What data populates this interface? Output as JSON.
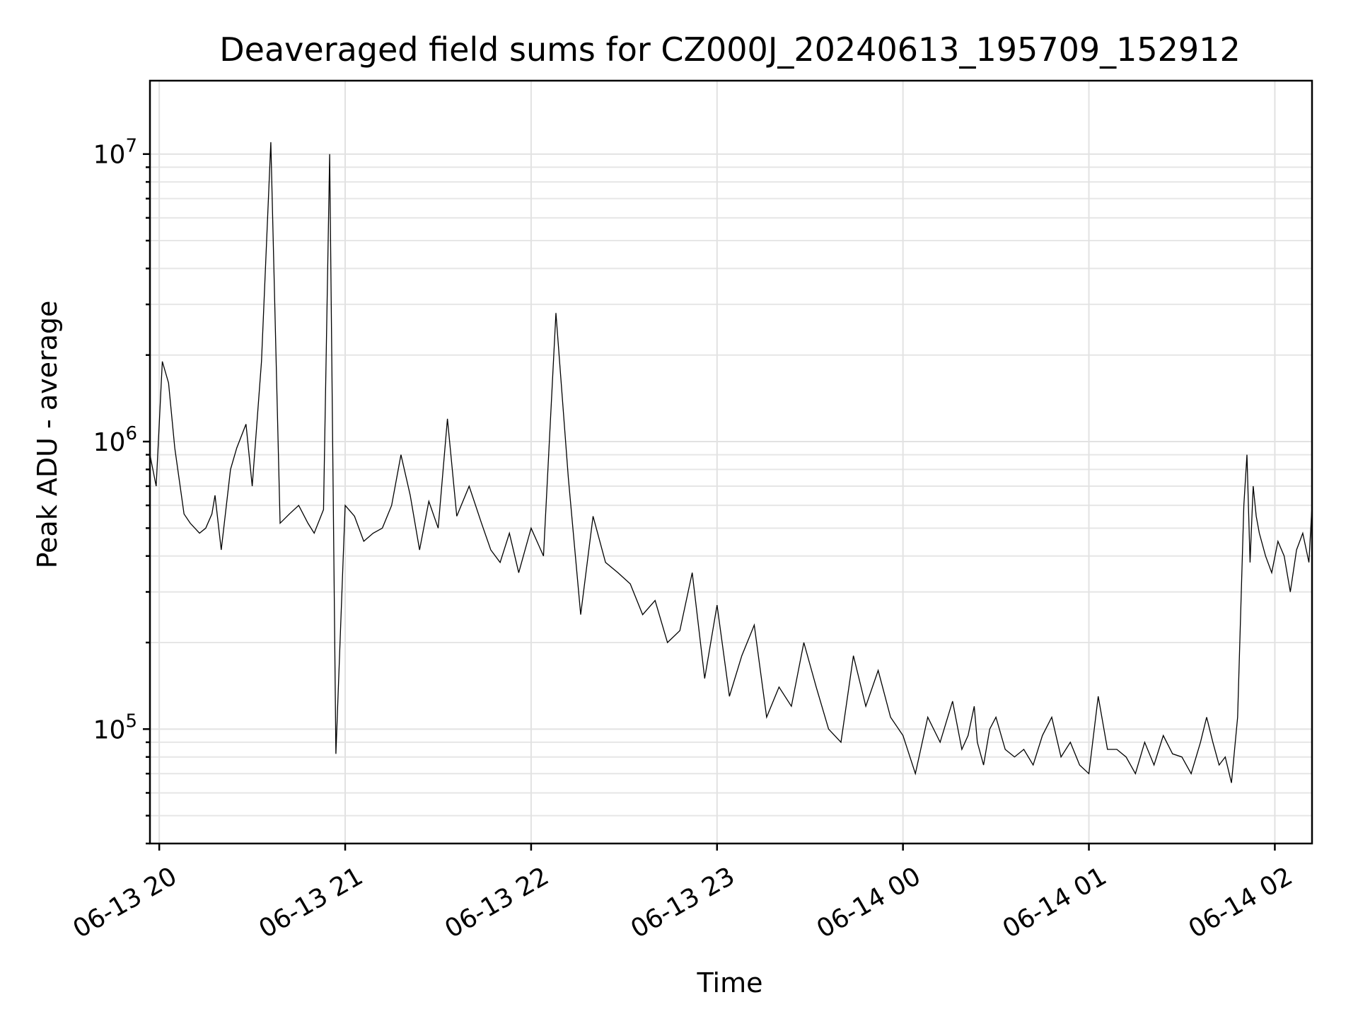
{
  "chart_data": {
    "type": "line",
    "title": "Deaveraged field sums for CZ000J_20240613_195709_152912",
    "xlabel": "Time",
    "ylabel": "Peak ADU - average",
    "yscale": "log",
    "xlim": [
      "2024-06-13 19:57",
      "2024-06-14 02:12"
    ],
    "ylim": [
      40000,
      18000000
    ],
    "x_ticks": [
      "06-13 20",
      "06-13 21",
      "06-13 22",
      "06-13 23",
      "06-14 00",
      "06-14 01",
      "06-14 02"
    ],
    "y_ticks": [
      {
        "base": "10",
        "exp": "5",
        "value": 100000
      },
      {
        "base": "10",
        "exp": "6",
        "value": 1000000
      },
      {
        "base": "10",
        "exp": "7",
        "value": 10000000
      }
    ],
    "grid": true,
    "legend": "none",
    "line_color": "#000000",
    "series": [
      {
        "x": [
          "2024-06-13 19:57",
          "2024-06-13 19:59",
          "2024-06-13 20:01",
          "2024-06-13 20:03",
          "2024-06-13 20:05",
          "2024-06-13 20:08",
          "2024-06-13 20:10",
          "2024-06-13 20:13",
          "2024-06-13 20:15",
          "2024-06-13 20:17",
          "2024-06-13 20:18",
          "2024-06-13 20:20",
          "2024-06-13 20:23",
          "2024-06-13 20:25",
          "2024-06-13 20:28",
          "2024-06-13 20:30",
          "2024-06-13 20:33",
          "2024-06-13 20:36",
          "2024-06-13 20:39",
          "2024-06-13 20:42",
          "2024-06-13 20:45",
          "2024-06-13 20:48",
          "2024-06-13 20:50",
          "2024-06-13 20:53",
          "2024-06-13 20:55",
          "2024-06-13 20:57",
          "2024-06-13 21:00",
          "2024-06-13 21:03",
          "2024-06-13 21:06",
          "2024-06-13 21:09",
          "2024-06-13 21:12",
          "2024-06-13 21:15",
          "2024-06-13 21:18",
          "2024-06-13 21:21",
          "2024-06-13 21:24",
          "2024-06-13 21:27",
          "2024-06-13 21:30",
          "2024-06-13 21:33",
          "2024-06-13 21:36",
          "2024-06-13 21:40",
          "2024-06-13 21:44",
          "2024-06-13 21:47",
          "2024-06-13 21:50",
          "2024-06-13 21:53",
          "2024-06-13 21:56",
          "2024-06-13 22:00",
          "2024-06-13 22:04",
          "2024-06-13 22:08",
          "2024-06-13 22:12",
          "2024-06-13 22:16",
          "2024-06-13 22:20",
          "2024-06-13 22:24",
          "2024-06-13 22:28",
          "2024-06-13 22:32",
          "2024-06-13 22:36",
          "2024-06-13 22:40",
          "2024-06-13 22:44",
          "2024-06-13 22:48",
          "2024-06-13 22:52",
          "2024-06-13 22:56",
          "2024-06-13 23:00",
          "2024-06-13 23:04",
          "2024-06-13 23:08",
          "2024-06-13 23:12",
          "2024-06-13 23:16",
          "2024-06-13 23:20",
          "2024-06-13 23:24",
          "2024-06-13 23:28",
          "2024-06-13 23:32",
          "2024-06-13 23:36",
          "2024-06-13 23:40",
          "2024-06-13 23:44",
          "2024-06-13 23:48",
          "2024-06-13 23:52",
          "2024-06-13 23:56",
          "2024-06-14 00:00",
          "2024-06-14 00:04",
          "2024-06-14 00:08",
          "2024-06-14 00:12",
          "2024-06-14 00:16",
          "2024-06-14 00:19",
          "2024-06-14 00:21",
          "2024-06-14 00:23",
          "2024-06-14 00:24",
          "2024-06-14 00:26",
          "2024-06-14 00:28",
          "2024-06-14 00:30",
          "2024-06-14 00:33",
          "2024-06-14 00:36",
          "2024-06-14 00:39",
          "2024-06-14 00:42",
          "2024-06-14 00:45",
          "2024-06-14 00:48",
          "2024-06-14 00:51",
          "2024-06-14 00:54",
          "2024-06-14 00:57",
          "2024-06-14 01:00",
          "2024-06-14 01:03",
          "2024-06-14 01:06",
          "2024-06-14 01:09",
          "2024-06-14 01:12",
          "2024-06-14 01:15",
          "2024-06-14 01:18",
          "2024-06-14 01:21",
          "2024-06-14 01:24",
          "2024-06-14 01:27",
          "2024-06-14 01:30",
          "2024-06-14 01:33",
          "2024-06-14 01:36",
          "2024-06-14 01:38",
          "2024-06-14 01:40",
          "2024-06-14 01:42",
          "2024-06-14 01:44",
          "2024-06-14 01:46",
          "2024-06-14 01:48",
          "2024-06-14 01:50",
          "2024-06-14 01:51",
          "2024-06-14 01:52",
          "2024-06-14 01:53",
          "2024-06-14 01:54",
          "2024-06-14 01:55",
          "2024-06-14 01:57",
          "2024-06-14 01:59",
          "2024-06-14 02:01",
          "2024-06-14 02:03",
          "2024-06-14 02:05",
          "2024-06-14 02:07",
          "2024-06-14 02:09",
          "2024-06-14 02:11",
          "2024-06-14 02:12"
        ],
        "y": [
          900000,
          700000,
          1900000,
          1600000,
          950000,
          560000,
          520000,
          480000,
          500000,
          560000,
          650000,
          420000,
          800000,
          950000,
          1150000,
          700000,
          1900000,
          11000000,
          520000,
          560000,
          600000,
          520000,
          480000,
          580000,
          10000000,
          82000,
          600000,
          550000,
          450000,
          480000,
          500000,
          600000,
          900000,
          650000,
          420000,
          620000,
          500000,
          1200000,
          550000,
          700000,
          520000,
          420000,
          380000,
          480000,
          350000,
          500000,
          400000,
          2800000,
          750000,
          250000,
          550000,
          380000,
          350000,
          320000,
          250000,
          280000,
          200000,
          220000,
          350000,
          150000,
          270000,
          130000,
          180000,
          230000,
          110000,
          140000,
          120000,
          200000,
          140000,
          100000,
          90000,
          180000,
          120000,
          160000,
          110000,
          95000,
          70000,
          110000,
          90000,
          125000,
          85000,
          95000,
          120000,
          90000,
          75000,
          100000,
          110000,
          85000,
          80000,
          85000,
          75000,
          95000,
          110000,
          80000,
          90000,
          75000,
          70000,
          130000,
          85000,
          85000,
          80000,
          70000,
          90000,
          75000,
          95000,
          82000,
          80000,
          70000,
          90000,
          110000,
          90000,
          75000,
          80000,
          65000,
          110000,
          600000,
          900000,
          380000,
          700000,
          550000,
          480000,
          400000,
          350000,
          450000,
          400000,
          300000,
          420000,
          480000,
          380000,
          600000
        ],
        "style": "line"
      }
    ]
  }
}
